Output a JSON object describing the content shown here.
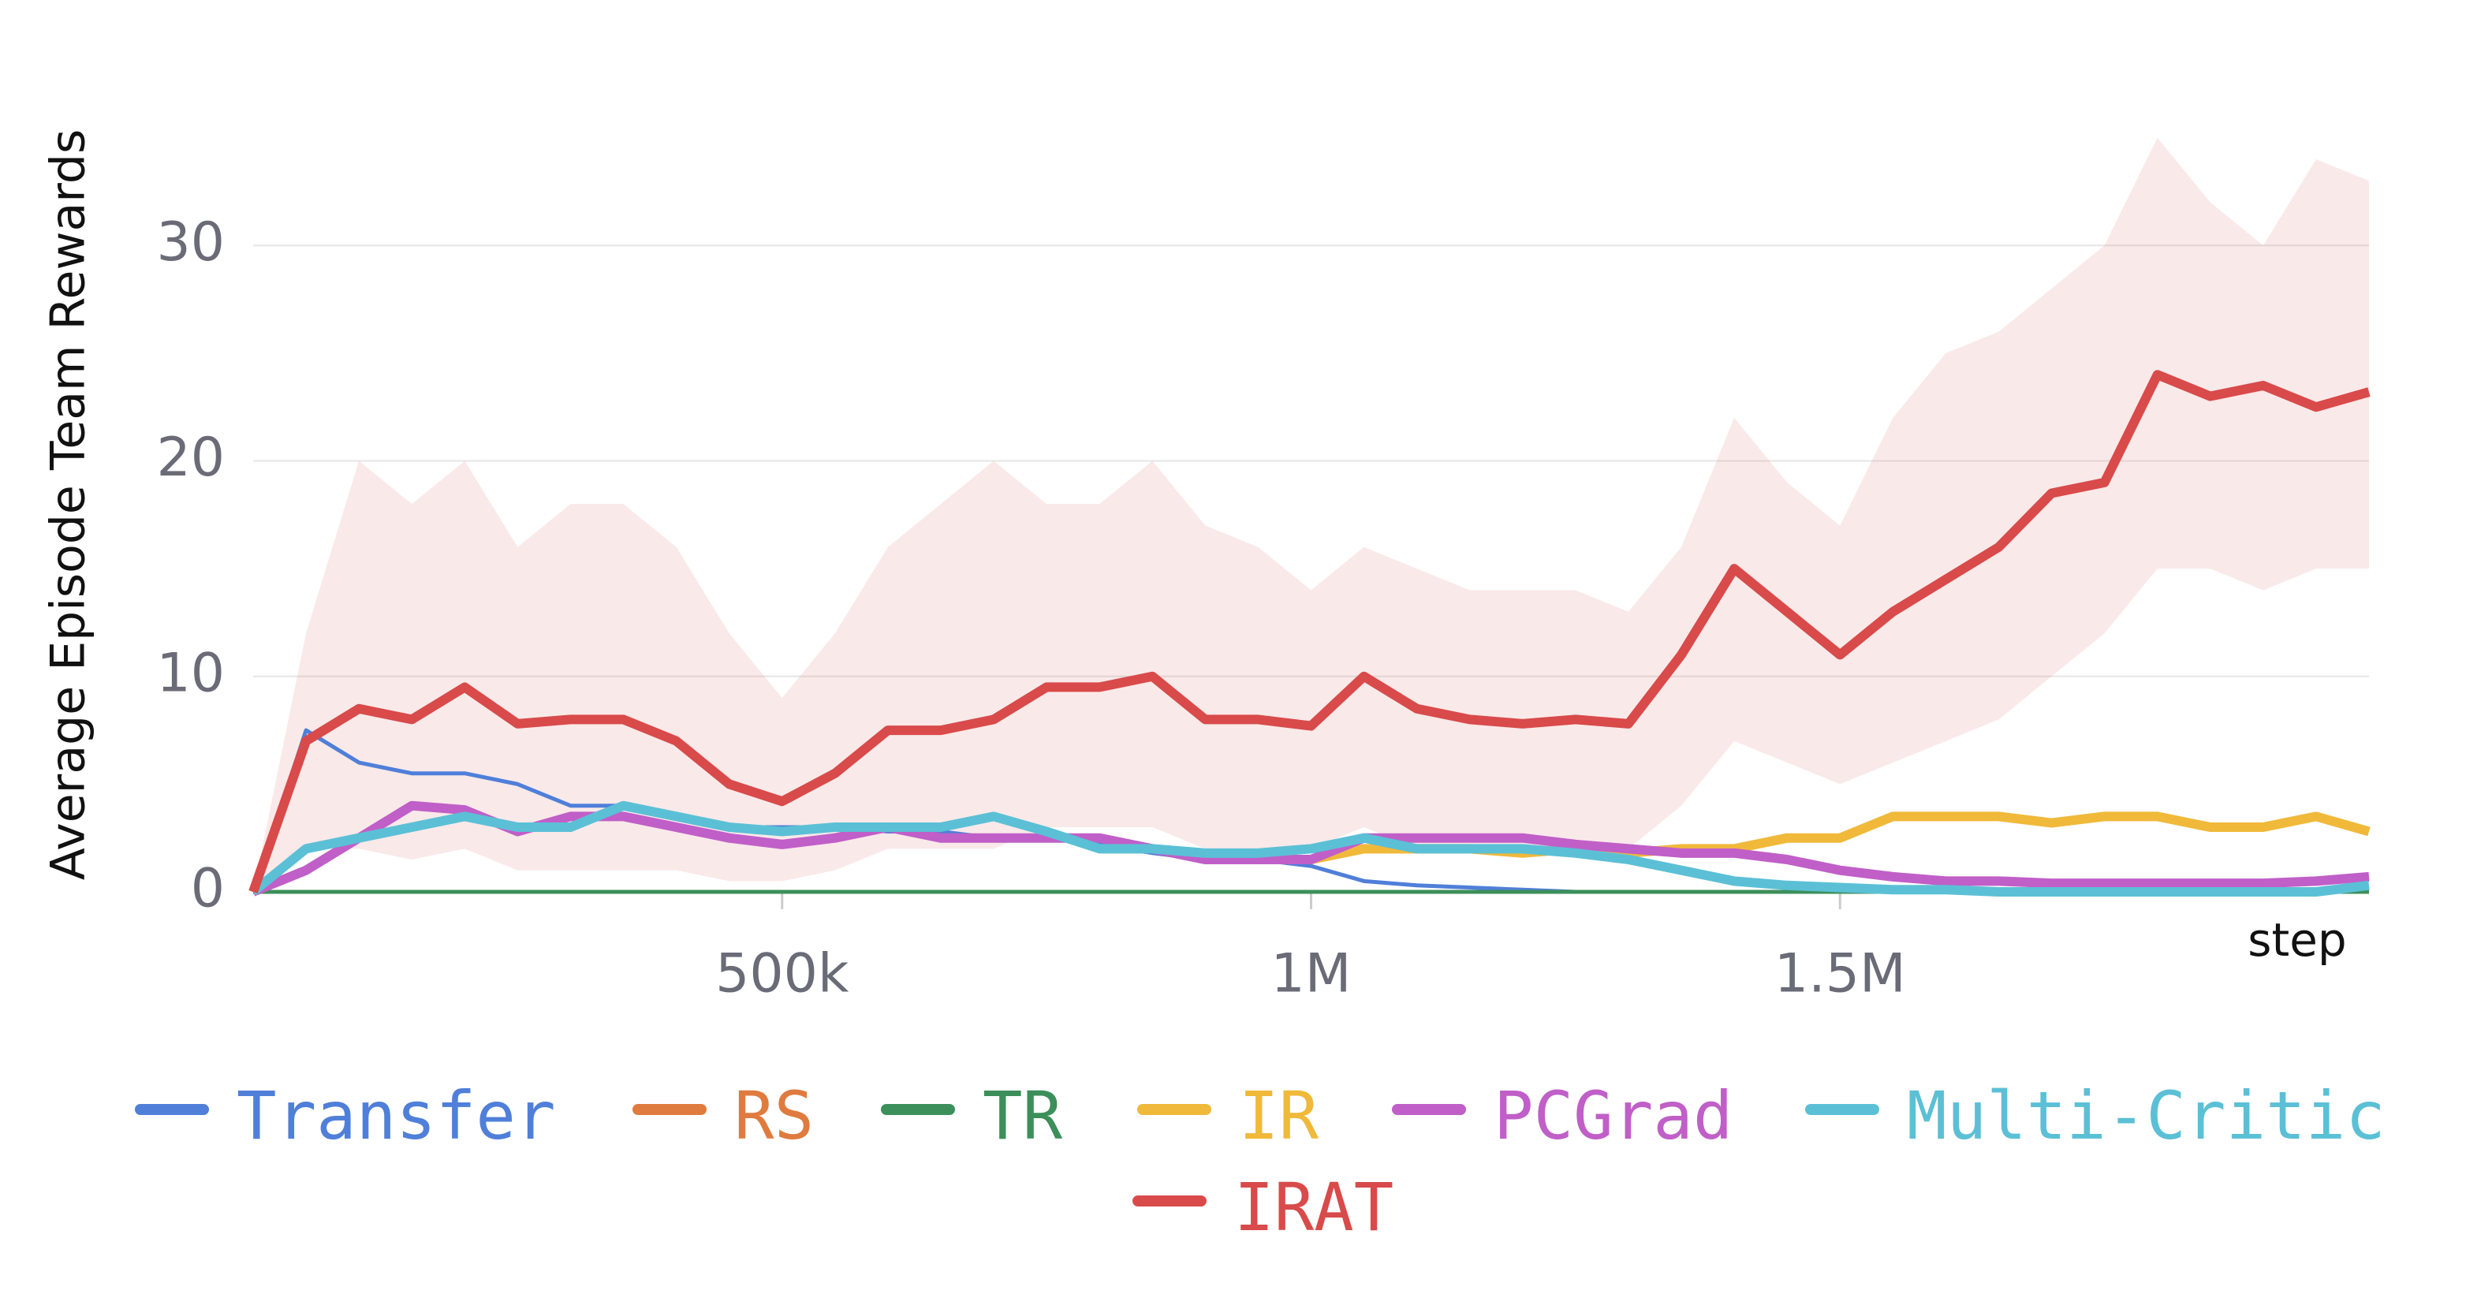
{
  "chart_data": {
    "type": "line",
    "y_label": "Average Episode Team Rewards",
    "x_label": "step",
    "x": [
      0,
      50000,
      100000,
      150000,
      200000,
      250000,
      300000,
      350000,
      400000,
      450000,
      500000,
      550000,
      600000,
      650000,
      700000,
      750000,
      800000,
      850000,
      900000,
      950000,
      1000000,
      1050000,
      1100000,
      1150000,
      1200000,
      1250000,
      1300000,
      1350000,
      1400000,
      1450000,
      1500000,
      1550000,
      1600000,
      1650000,
      1700000,
      1750000,
      1800000,
      1850000,
      1900000,
      1950000,
      2000000
    ],
    "xlim": [
      0,
      2000000
    ],
    "xticks": [
      {
        "value": 500000,
        "label": "500k"
      },
      {
        "value": 1000000,
        "label": "1M"
      },
      {
        "value": 1500000,
        "label": "1.5M"
      }
    ],
    "ylim": [
      0,
      37
    ],
    "yticks": [
      0,
      10,
      20,
      30
    ],
    "grid": true,
    "series": [
      {
        "name": "Transfer",
        "color": "#4f7fd9",
        "values": [
          0,
          7.5,
          6,
          5.5,
          5.5,
          5,
          4,
          4,
          3.5,
          3,
          3,
          3,
          2.8,
          2.8,
          2.5,
          2.5,
          2.2,
          1.8,
          1.5,
          1.5,
          1.2,
          0.5,
          0.3,
          0.2,
          0.1,
          0,
          0,
          0,
          0,
          0,
          0,
          0,
          0,
          0,
          0,
          0,
          0,
          0,
          0,
          0,
          0
        ]
      },
      {
        "name": "RS",
        "color": "#e07b3f",
        "values": [
          0,
          0,
          0,
          0,
          0,
          0,
          0,
          0,
          0,
          0,
          0,
          0,
          0,
          0,
          0,
          0,
          0,
          0,
          0,
          0,
          0,
          0,
          0,
          0,
          0,
          0,
          0,
          0,
          0,
          0,
          0,
          0,
          0,
          0,
          0,
          0,
          0,
          0,
          0,
          0,
          0
        ]
      },
      {
        "name": "TR",
        "color": "#3c8f5a",
        "values": [
          0,
          0,
          0,
          0,
          0,
          0,
          0,
          0,
          0,
          0,
          0,
          0,
          0,
          0,
          0,
          0,
          0,
          0,
          0,
          0,
          0,
          0,
          0,
          0,
          0,
          0,
          0,
          0,
          0,
          0,
          0,
          0,
          0,
          0,
          0,
          0,
          0,
          0,
          0,
          0,
          0
        ]
      },
      {
        "name": "IR",
        "color": "#f0b93a",
        "values": [
          null,
          null,
          null,
          null,
          null,
          null,
          null,
          null,
          null,
          null,
          null,
          null,
          null,
          null,
          null,
          null,
          null,
          null,
          null,
          null,
          1.5,
          2,
          2,
          2,
          1.8,
          2,
          1.8,
          2,
          2,
          2.5,
          2.5,
          3.5,
          3.5,
          3.5,
          3.2,
          3.5,
          3.5,
          3,
          3,
          3.5,
          2.8
        ]
      },
      {
        "name": "PCGrad",
        "color": "#c05fc8",
        "values": [
          0,
          1,
          2.5,
          4,
          3.8,
          2.8,
          3.5,
          3.5,
          3,
          2.5,
          2.2,
          2.5,
          3,
          2.5,
          2.5,
          2.5,
          2.5,
          2,
          1.5,
          1.5,
          1.5,
          2.5,
          2.5,
          2.5,
          2.5,
          2.2,
          2,
          1.8,
          1.8,
          1.5,
          1,
          0.7,
          0.5,
          0.5,
          0.4,
          0.4,
          0.4,
          0.4,
          0.4,
          0.5,
          0.7
        ]
      },
      {
        "name": "Multi-Critic",
        "color": "#5bc0d6",
        "values": [
          0,
          2,
          2.5,
          3,
          3.5,
          3,
          3,
          4,
          3.5,
          3,
          2.8,
          3,
          3,
          3,
          3.5,
          2.8,
          2,
          2,
          1.8,
          1.8,
          2,
          2.5,
          2,
          2,
          2,
          1.8,
          1.5,
          1,
          0.5,
          0.3,
          0.2,
          0.1,
          0.1,
          0,
          0,
          0,
          0,
          0,
          0,
          0,
          0.3
        ]
      },
      {
        "name": "IRAT",
        "color": "#d94a4a",
        "values": [
          0,
          7,
          8.5,
          8,
          9.5,
          7.8,
          8,
          8,
          7,
          5,
          4.2,
          5.5,
          7.5,
          7.5,
          8,
          9.5,
          9.5,
          10,
          8,
          8,
          7.7,
          10,
          8.5,
          8,
          7.8,
          8,
          7.8,
          11,
          15,
          13,
          11,
          13,
          14.5,
          16,
          18.5,
          19,
          24,
          23,
          23.5,
          22.5,
          23.2
        ],
        "lower": [
          0,
          2,
          2,
          1.5,
          2,
          1,
          1,
          1,
          1,
          0.5,
          0.5,
          1,
          2,
          2,
          2,
          3,
          3,
          3,
          2,
          2,
          2,
          3,
          2,
          2,
          2,
          2,
          2,
          4,
          7,
          6,
          5,
          6,
          7,
          8,
          10,
          12,
          15,
          15,
          14,
          15,
          15
        ],
        "upper": [
          0,
          12,
          20,
          18,
          20,
          16,
          18,
          18,
          16,
          12,
          9,
          12,
          16,
          18,
          20,
          18,
          18,
          20,
          17,
          16,
          14,
          16,
          15,
          14,
          14,
          14,
          13,
          16,
          22,
          19,
          17,
          22,
          25,
          26,
          28,
          30,
          35,
          32,
          30,
          34,
          33
        ]
      }
    ]
  }
}
